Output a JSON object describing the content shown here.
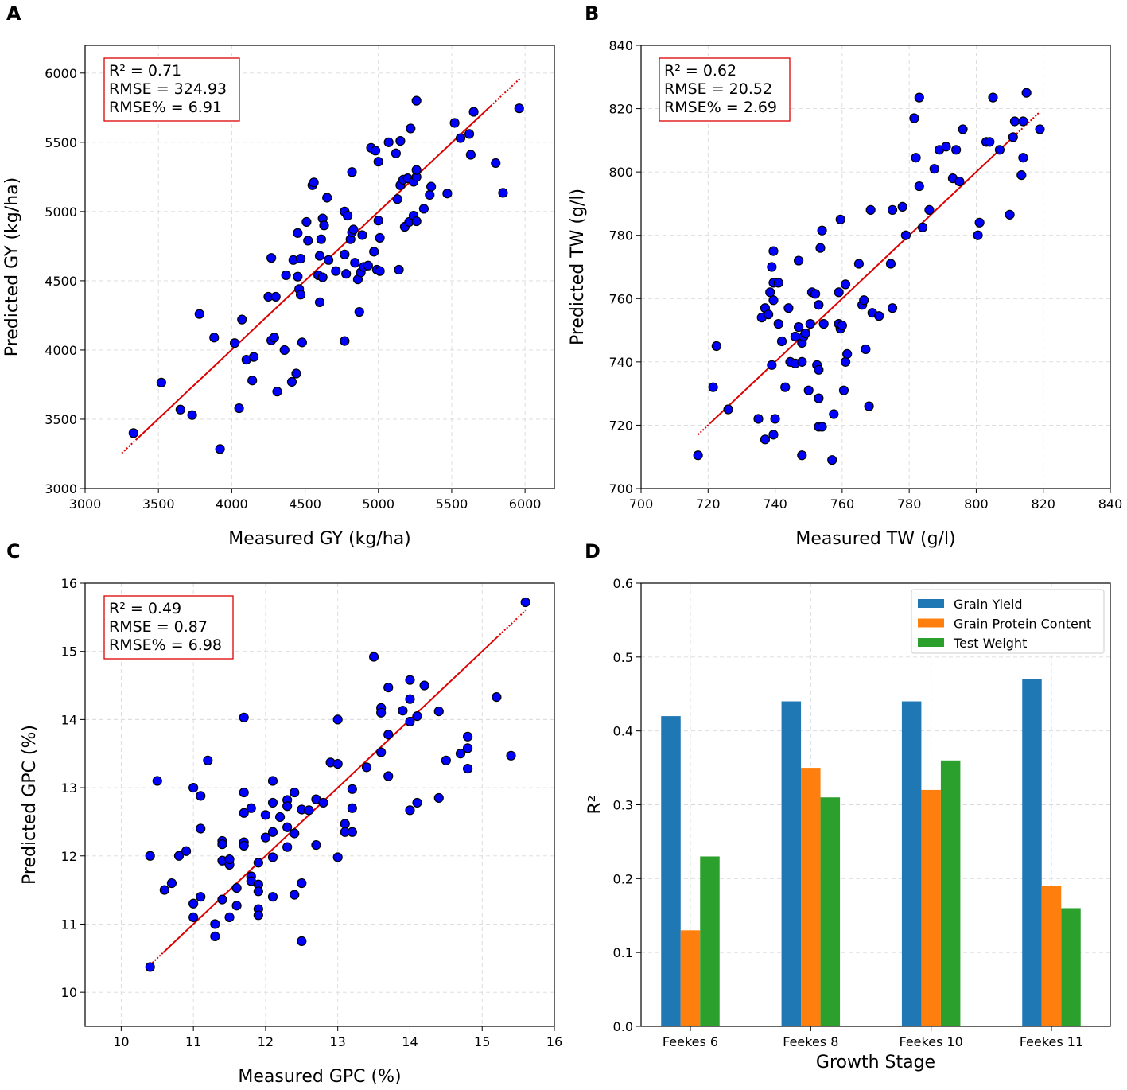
{
  "colors": {
    "point_fill": "#0000ff",
    "point_edge": "#000000",
    "fit_line": "#dd0000",
    "stats_box": "#dd0000",
    "grid": "#d9d9d9",
    "bar_series": [
      "#1f77b4",
      "#ff7f0e",
      "#2ca02c"
    ]
  },
  "chart_data": [
    {
      "panel": "A",
      "type": "scatter",
      "xlabel": "Measured GY (kg/ha)",
      "ylabel": "Predicted GY (kg/ha)",
      "xlim": [
        3000,
        6200
      ],
      "ylim": [
        3000,
        6200
      ],
      "xticks": [
        3000,
        3500,
        4000,
        4500,
        5000,
        5500,
        6000
      ],
      "yticks": [
        3000,
        3500,
        4000,
        4500,
        5000,
        5500,
        6000
      ],
      "grid": true,
      "stats": {
        "r2": "R² = 0.71",
        "rmse": "RMSE = 324.93",
        "rmse_pct": "RMSE% = 6.91"
      },
      "fit_line": {
        "x": [
          3250,
          5970
        ],
        "y": [
          3255,
          5965
        ]
      },
      "points": [
        [
          3330,
          3400
        ],
        [
          3520,
          3765
        ],
        [
          3650,
          3570
        ],
        [
          3730,
          3530
        ],
        [
          3780,
          4260
        ],
        [
          3880,
          4090
        ],
        [
          3920,
          3285
        ],
        [
          4020,
          4050
        ],
        [
          4050,
          3580
        ],
        [
          4070,
          4220
        ],
        [
          4100,
          3930
        ],
        [
          4140,
          3780
        ],
        [
          4150,
          3950
        ],
        [
          4250,
          4385
        ],
        [
          4270,
          4070
        ],
        [
          4290,
          4090
        ],
        [
          4270,
          4665
        ],
        [
          4300,
          4385
        ],
        [
          4310,
          3700
        ],
        [
          4360,
          4000
        ],
        [
          4370,
          4540
        ],
        [
          4410,
          3770
        ],
        [
          4420,
          4650
        ],
        [
          4440,
          3830
        ],
        [
          4450,
          4530
        ],
        [
          4450,
          4845
        ],
        [
          4460,
          4440
        ],
        [
          4470,
          4660
        ],
        [
          4470,
          4400
        ],
        [
          4480,
          4055
        ],
        [
          4510,
          4925
        ],
        [
          4520,
          4790
        ],
        [
          4550,
          5190
        ],
        [
          4560,
          5210
        ],
        [
          4590,
          4540
        ],
        [
          4600,
          4345
        ],
        [
          4600,
          4680
        ],
        [
          4610,
          4800
        ],
        [
          4620,
          4950
        ],
        [
          4620,
          4525
        ],
        [
          4630,
          4900
        ],
        [
          4650,
          5100
        ],
        [
          4660,
          4650
        ],
        [
          4710,
          4570
        ],
        [
          4770,
          4065
        ],
        [
          4770,
          5000
        ],
        [
          4770,
          4690
        ],
        [
          4780,
          4550
        ],
        [
          4790,
          4970
        ],
        [
          4810,
          4800
        ],
        [
          4820,
          5285
        ],
        [
          4820,
          4850
        ],
        [
          4830,
          4870
        ],
        [
          4840,
          4630
        ],
        [
          4860,
          4510
        ],
        [
          4870,
          4275
        ],
        [
          4880,
          4560
        ],
        [
          4890,
          4830
        ],
        [
          4900,
          4600
        ],
        [
          4930,
          4610
        ],
        [
          4950,
          5460
        ],
        [
          4970,
          4710
        ],
        [
          4980,
          5440
        ],
        [
          4990,
          4580
        ],
        [
          5000,
          4935
        ],
        [
          5000,
          5360
        ],
        [
          5010,
          4570
        ],
        [
          5010,
          4810
        ],
        [
          5070,
          5500
        ],
        [
          5120,
          5420
        ],
        [
          5130,
          5090
        ],
        [
          5140,
          4580
        ],
        [
          5150,
          5510
        ],
        [
          5150,
          5190
        ],
        [
          5170,
          5230
        ],
        [
          5180,
          4890
        ],
        [
          5200,
          5240
        ],
        [
          5210,
          4925
        ],
        [
          5220,
          5600
        ],
        [
          5240,
          4970
        ],
        [
          5240,
          5215
        ],
        [
          5260,
          4930
        ],
        [
          5260,
          5250
        ],
        [
          5260,
          5300
        ],
        [
          5260,
          5800
        ],
        [
          5310,
          5020
        ],
        [
          5350,
          5120
        ],
        [
          5360,
          5180
        ],
        [
          5470,
          5130
        ],
        [
          5520,
          5640
        ],
        [
          5560,
          5530
        ],
        [
          5620,
          5560
        ],
        [
          5630,
          5410
        ],
        [
          5650,
          5720
        ],
        [
          5800,
          5350
        ],
        [
          5850,
          5135
        ],
        [
          5960,
          5745
        ]
      ]
    },
    {
      "panel": "B",
      "type": "scatter",
      "xlabel": "Measured TW (g/l)",
      "ylabel": "Predicted TW (g/l)",
      "xlim": [
        700,
        840
      ],
      "ylim": [
        700,
        840
      ],
      "xticks": [
        700,
        720,
        740,
        760,
        780,
        800,
        820,
        840
      ],
      "yticks": [
        700,
        720,
        740,
        760,
        780,
        800,
        820,
        840
      ],
      "grid": true,
      "stats": {
        "r2": "R² = 0.62",
        "rmse": "RMSE = 20.52",
        "rmse_pct": "RMSE% = 2.69"
      },
      "fit_line": {
        "x": [
          717,
          819
        ],
        "y": [
          717,
          819
        ]
      },
      "points": [
        [
          717,
          710.5
        ],
        [
          721.5,
          732
        ],
        [
          722.5,
          745
        ],
        [
          726,
          725
        ],
        [
          735,
          722
        ],
        [
          736,
          754
        ],
        [
          737,
          757
        ],
        [
          737,
          715.5
        ],
        [
          738,
          755
        ],
        [
          738.5,
          762
        ],
        [
          739,
          739
        ],
        [
          739,
          770
        ],
        [
          739.5,
          717
        ],
        [
          739.5,
          765
        ],
        [
          739.5,
          759.5
        ],
        [
          739.5,
          775
        ],
        [
          740,
          722
        ],
        [
          741,
          752
        ],
        [
          741,
          765
        ],
        [
          742,
          746.5
        ],
        [
          743,
          732
        ],
        [
          744,
          757
        ],
        [
          744.5,
          740
        ],
        [
          746,
          739.5
        ],
        [
          746,
          748
        ],
        [
          747,
          751
        ],
        [
          747,
          772
        ],
        [
          748,
          746
        ],
        [
          748,
          710.5
        ],
        [
          748,
          740
        ],
        [
          748.5,
          748
        ],
        [
          749,
          749
        ],
        [
          750,
          731
        ],
        [
          750.5,
          752
        ],
        [
          751,
          762
        ],
        [
          752,
          761.5
        ],
        [
          752.5,
          739
        ],
        [
          753,
          728.5
        ],
        [
          753,
          737.5
        ],
        [
          753,
          758
        ],
        [
          753,
          719.5
        ],
        [
          753.5,
          776
        ],
        [
          754,
          781.5
        ],
        [
          754,
          719.5
        ],
        [
          754.5,
          752
        ],
        [
          757,
          709
        ],
        [
          757.5,
          723.5
        ],
        [
          759,
          762
        ],
        [
          759,
          752
        ],
        [
          759.5,
          750.5
        ],
        [
          759.5,
          785
        ],
        [
          760,
          751.5
        ],
        [
          760.5,
          731
        ],
        [
          761,
          740
        ],
        [
          761,
          764.5
        ],
        [
          761.5,
          742.5
        ],
        [
          765,
          771
        ],
        [
          766,
          758
        ],
        [
          766.5,
          759.5
        ],
        [
          767,
          744
        ],
        [
          768,
          726
        ],
        [
          768.5,
          788
        ],
        [
          769,
          755.5
        ],
        [
          771,
          754.5
        ],
        [
          774.5,
          771
        ],
        [
          775,
          757
        ],
        [
          775,
          788
        ],
        [
          778,
          789
        ],
        [
          779,
          780
        ],
        [
          781.5,
          817
        ],
        [
          782,
          804.5
        ],
        [
          783,
          823.5
        ],
        [
          783,
          795.5
        ],
        [
          784,
          782.5
        ],
        [
          786,
          788
        ],
        [
          787.5,
          801
        ],
        [
          789,
          807
        ],
        [
          791,
          808
        ],
        [
          793,
          798
        ],
        [
          794,
          807
        ],
        [
          795,
          797
        ],
        [
          796,
          813.5
        ],
        [
          800.5,
          780
        ],
        [
          801,
          784
        ],
        [
          803,
          809.5
        ],
        [
          804,
          809.5
        ],
        [
          805,
          823.5
        ],
        [
          807,
          807
        ],
        [
          810,
          786.5
        ],
        [
          811,
          811
        ],
        [
          811.5,
          816
        ],
        [
          813.5,
          799
        ],
        [
          814,
          816
        ],
        [
          814,
          804.5
        ],
        [
          815,
          825
        ],
        [
          819,
          813.5
        ]
      ]
    },
    {
      "panel": "C",
      "type": "scatter",
      "xlabel": "Measured GPC (%)",
      "ylabel": "Predicted GPC (%)",
      "xlim": [
        9.5,
        16
      ],
      "ylim": [
        9.5,
        16
      ],
      "xticks": [
        10,
        11,
        12,
        13,
        14,
        15,
        16
      ],
      "yticks": [
        10,
        11,
        12,
        13,
        14,
        15,
        16
      ],
      "grid": true,
      "stats": {
        "r2": "R² = 0.49",
        "rmse": "RMSE = 0.87",
        "rmse_pct": "RMSE% = 6.98"
      },
      "fit_line": {
        "x": [
          10.4,
          15.6
        ],
        "y": [
          10.4,
          15.6
        ]
      },
      "points": [
        [
          10.4,
          12.0
        ],
        [
          10.4,
          10.37
        ],
        [
          10.5,
          13.1
        ],
        [
          10.6,
          11.5
        ],
        [
          10.7,
          11.6
        ],
        [
          10.8,
          12.0
        ],
        [
          10.9,
          12.07
        ],
        [
          11.0,
          13.0
        ],
        [
          11.0,
          11.3
        ],
        [
          11.0,
          11.1
        ],
        [
          11.1,
          12.88
        ],
        [
          11.1,
          12.4
        ],
        [
          11.1,
          11.4
        ],
        [
          11.2,
          13.4
        ],
        [
          11.3,
          11.0
        ],
        [
          11.3,
          10.82
        ],
        [
          11.4,
          12.22
        ],
        [
          11.4,
          12.17
        ],
        [
          11.4,
          11.93
        ],
        [
          11.4,
          11.36
        ],
        [
          11.5,
          11.87
        ],
        [
          11.5,
          11.95
        ],
        [
          11.5,
          11.1
        ],
        [
          11.6,
          11.53
        ],
        [
          11.6,
          11.27
        ],
        [
          11.7,
          14.03
        ],
        [
          11.7,
          12.93
        ],
        [
          11.7,
          12.63
        ],
        [
          11.7,
          12.2
        ],
        [
          11.7,
          12.15
        ],
        [
          11.8,
          12.7
        ],
        [
          11.8,
          11.7
        ],
        [
          11.8,
          11.63
        ],
        [
          11.9,
          11.9
        ],
        [
          11.9,
          11.58
        ],
        [
          11.9,
          11.48
        ],
        [
          11.9,
          11.22
        ],
        [
          11.9,
          11.13
        ],
        [
          12.0,
          12.6
        ],
        [
          12.0,
          12.27
        ],
        [
          12.1,
          13.1
        ],
        [
          12.1,
          12.78
        ],
        [
          12.1,
          12.35
        ],
        [
          12.1,
          11.98
        ],
        [
          12.1,
          11.4
        ],
        [
          12.2,
          12.57
        ],
        [
          12.3,
          12.82
        ],
        [
          12.3,
          12.73
        ],
        [
          12.3,
          12.42
        ],
        [
          12.3,
          12.13
        ],
        [
          12.4,
          12.93
        ],
        [
          12.4,
          12.33
        ],
        [
          12.4,
          11.43
        ],
        [
          12.5,
          12.68
        ],
        [
          12.5,
          11.6
        ],
        [
          12.5,
          10.75
        ],
        [
          12.6,
          12.67
        ],
        [
          12.7,
          12.83
        ],
        [
          12.7,
          12.16
        ],
        [
          12.8,
          12.78
        ],
        [
          12.9,
          13.37
        ],
        [
          13.0,
          13.35
        ],
        [
          13.0,
          14.0
        ],
        [
          13.0,
          11.98
        ],
        [
          13.1,
          12.47
        ],
        [
          13.1,
          12.35
        ],
        [
          13.2,
          12.98
        ],
        [
          13.2,
          12.7
        ],
        [
          13.2,
          12.35
        ],
        [
          13.4,
          13.3
        ],
        [
          13.5,
          14.92
        ],
        [
          13.6,
          14.17
        ],
        [
          13.6,
          14.1
        ],
        [
          13.6,
          13.52
        ],
        [
          13.7,
          14.47
        ],
        [
          13.7,
          13.78
        ],
        [
          13.7,
          13.17
        ],
        [
          13.9,
          14.13
        ],
        [
          14.0,
          14.58
        ],
        [
          14.0,
          14.3
        ],
        [
          14.0,
          13.97
        ],
        [
          14.0,
          12.67
        ],
        [
          14.1,
          14.05
        ],
        [
          14.1,
          12.78
        ],
        [
          14.2,
          14.5
        ],
        [
          14.4,
          14.12
        ],
        [
          14.4,
          12.85
        ],
        [
          14.5,
          13.4
        ],
        [
          14.7,
          13.5
        ],
        [
          14.8,
          13.75
        ],
        [
          14.8,
          13.58
        ],
        [
          14.8,
          13.28
        ],
        [
          15.2,
          14.33
        ],
        [
          15.4,
          13.47
        ],
        [
          15.6,
          15.72
        ]
      ]
    },
    {
      "panel": "D",
      "type": "bar",
      "xlabel": "Growth Stage",
      "ylabel": "R²",
      "ylim": [
        0,
        0.6
      ],
      "yticks": [
        "0.0",
        "0.1",
        "0.2",
        "0.3",
        "0.4",
        "0.5",
        "0.6"
      ],
      "grid": true,
      "categories": [
        "Feekes 6",
        "Feekes 8",
        "Feekes 10",
        "Feekes 11"
      ],
      "legend_position": "top-right",
      "series": [
        {
          "name": "Grain Yield",
          "values": [
            0.42,
            0.44,
            0.44,
            0.47
          ]
        },
        {
          "name": "Grain Protein Content",
          "values": [
            0.13,
            0.35,
            0.32,
            0.19
          ]
        },
        {
          "name": "Test Weight",
          "values": [
            0.23,
            0.31,
            0.36,
            0.16
          ]
        }
      ]
    }
  ]
}
